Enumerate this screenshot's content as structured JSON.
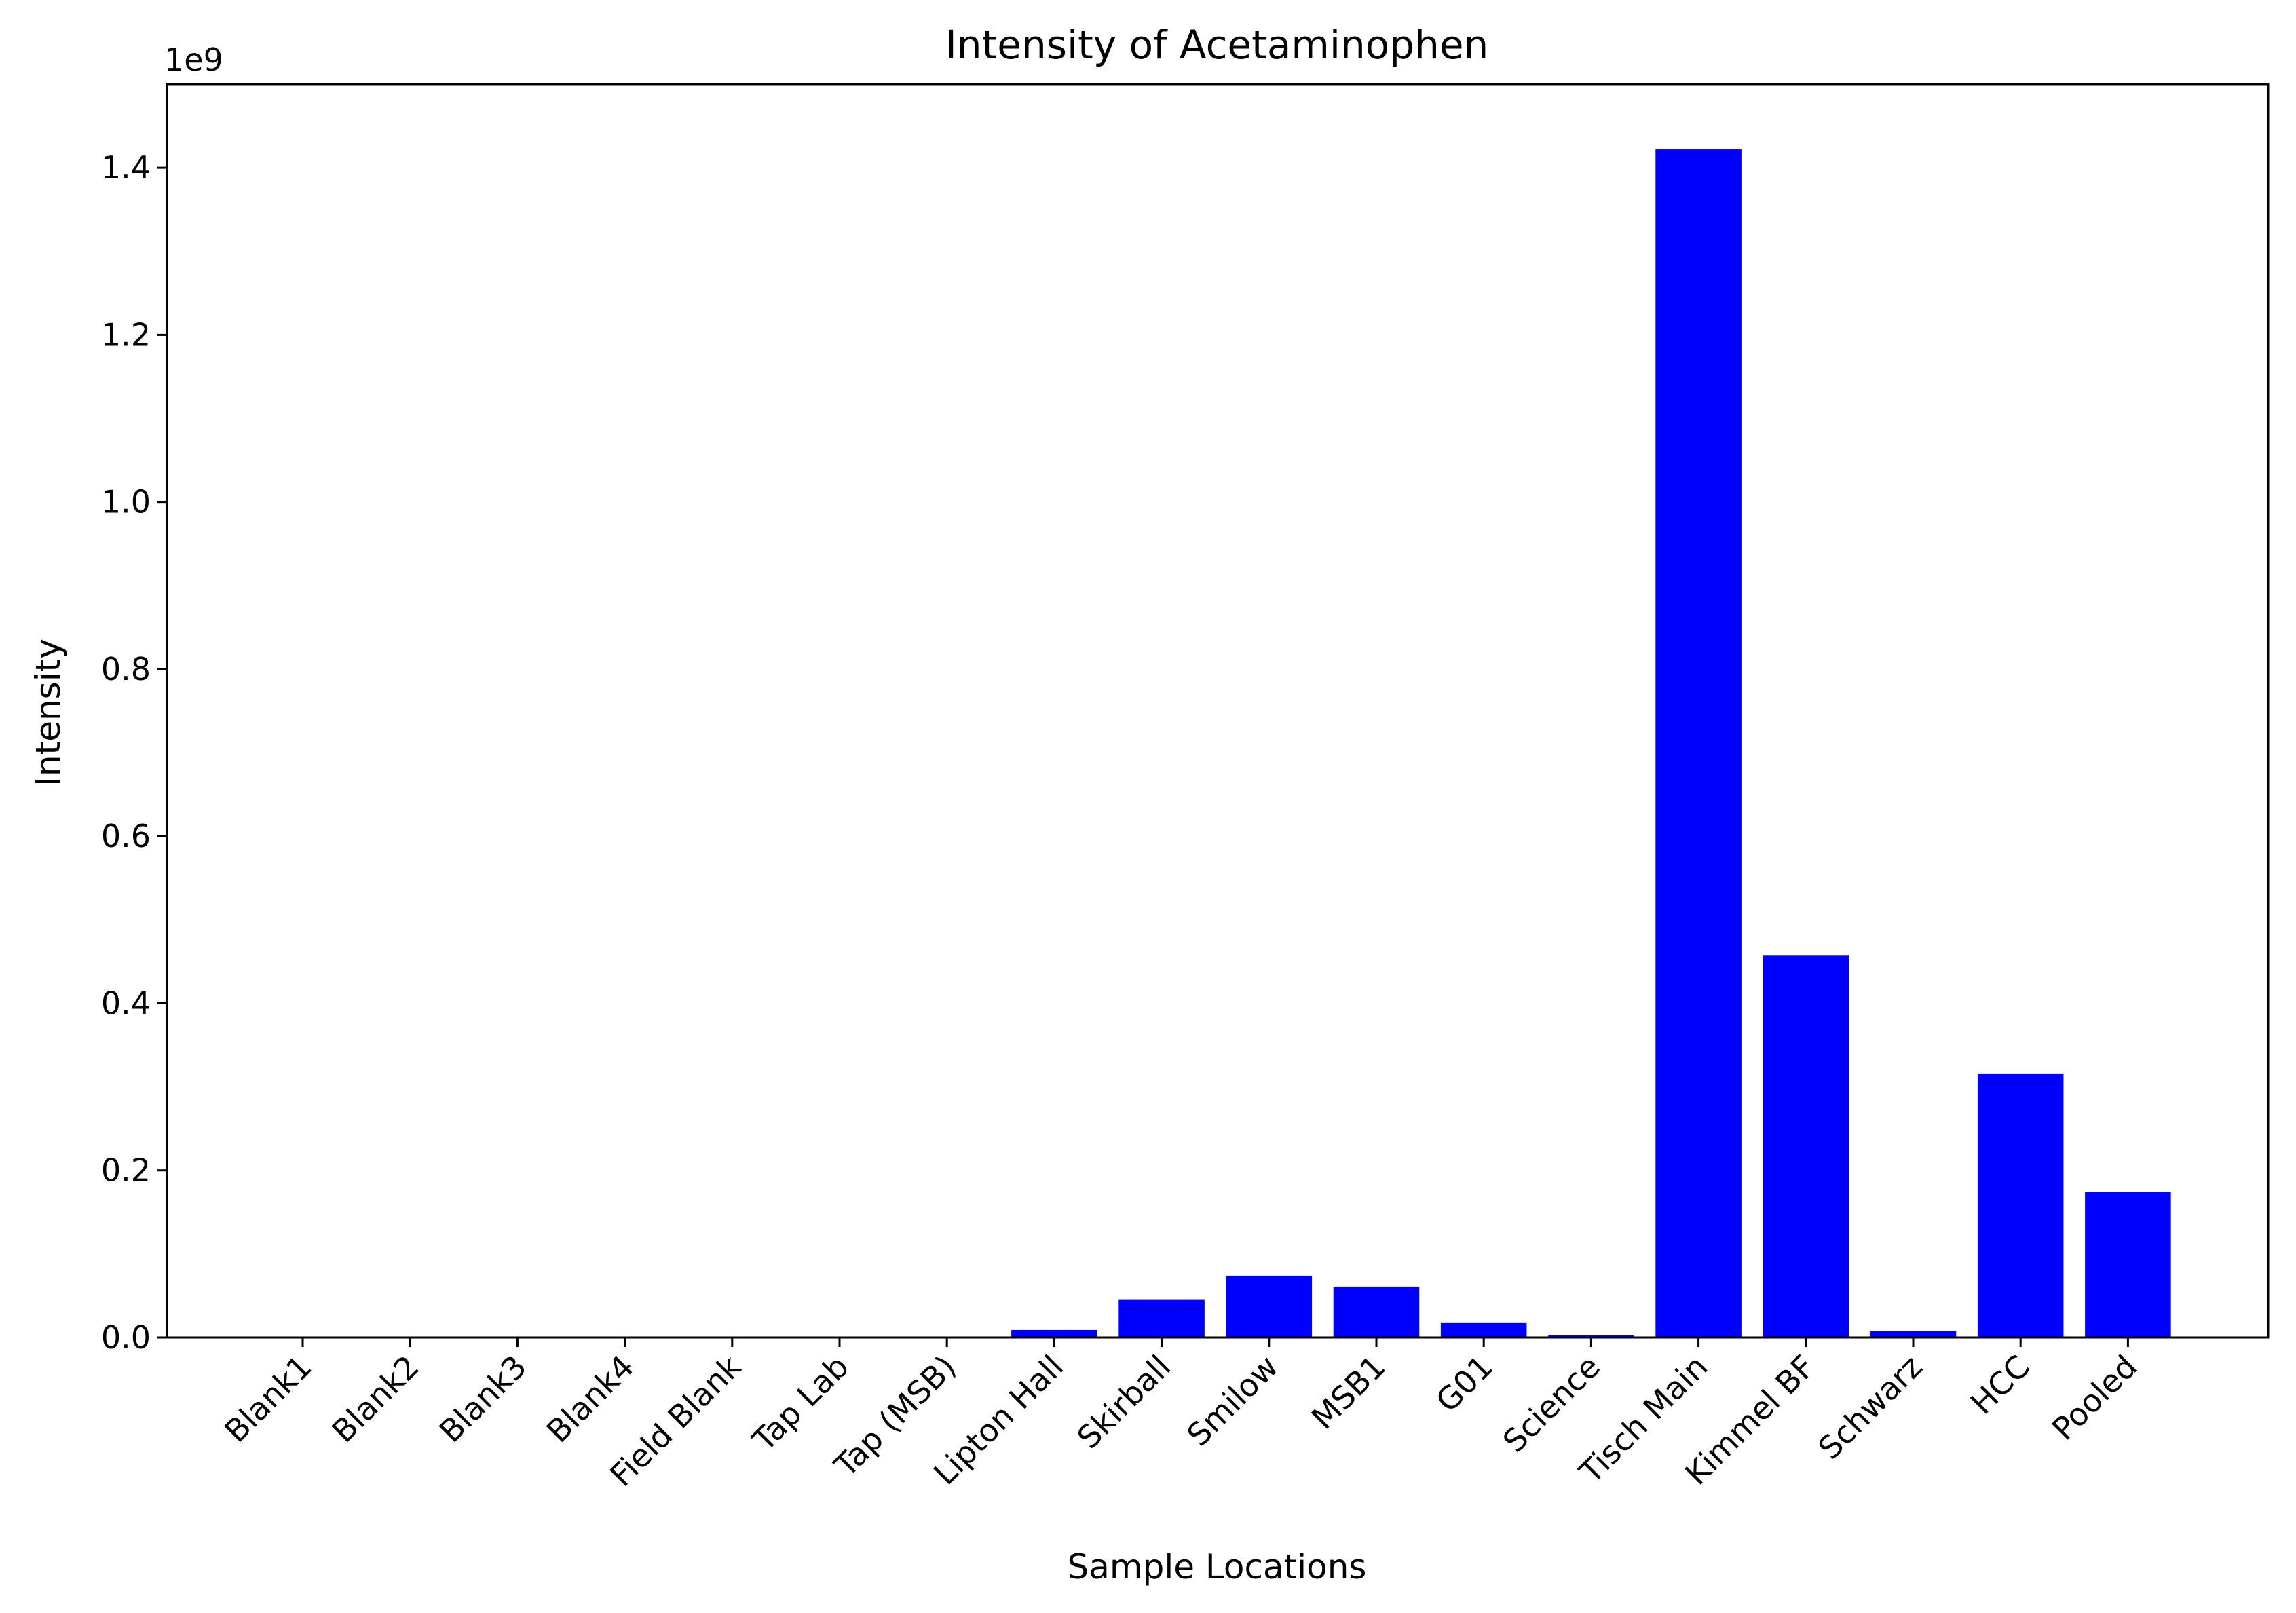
{
  "chart_data": {
    "type": "bar",
    "title": "Intensity of Acetaminophen",
    "xlabel": "Sample Locations",
    "ylabel": "Intensity",
    "y_offset_label": "1e9",
    "categories": [
      "Blank1",
      "Blank2",
      "Blank3",
      "Blank4",
      "Field Blank",
      "Tap Lab",
      "Tap (MSB)",
      "Lipton Hall",
      "Skirball",
      "Smilow",
      "MSB1",
      "G01",
      "Science",
      "Tisch Main",
      "Kimmel BF",
      "Schwarz",
      "HCC",
      "Pooled"
    ],
    "values": [
      0,
      0,
      0,
      0,
      0,
      0,
      0,
      0.009,
      0.045,
      0.074,
      0.061,
      0.018,
      0.003,
      1.422,
      0.457,
      0.008,
      0.316,
      0.174
    ],
    "value_scale": 1000000000,
    "ylim": [
      0,
      1.5
    ],
    "yticks": [
      0.0,
      0.2,
      0.4,
      0.6,
      0.8,
      1.0,
      1.2,
      1.4
    ],
    "ytick_labels": [
      "0.0",
      "0.2",
      "0.4",
      "0.6",
      "0.8",
      "1.0",
      "1.2",
      "1.4"
    ],
    "bar_color": "#0000ff",
    "grid": false,
    "legend": "none"
  }
}
